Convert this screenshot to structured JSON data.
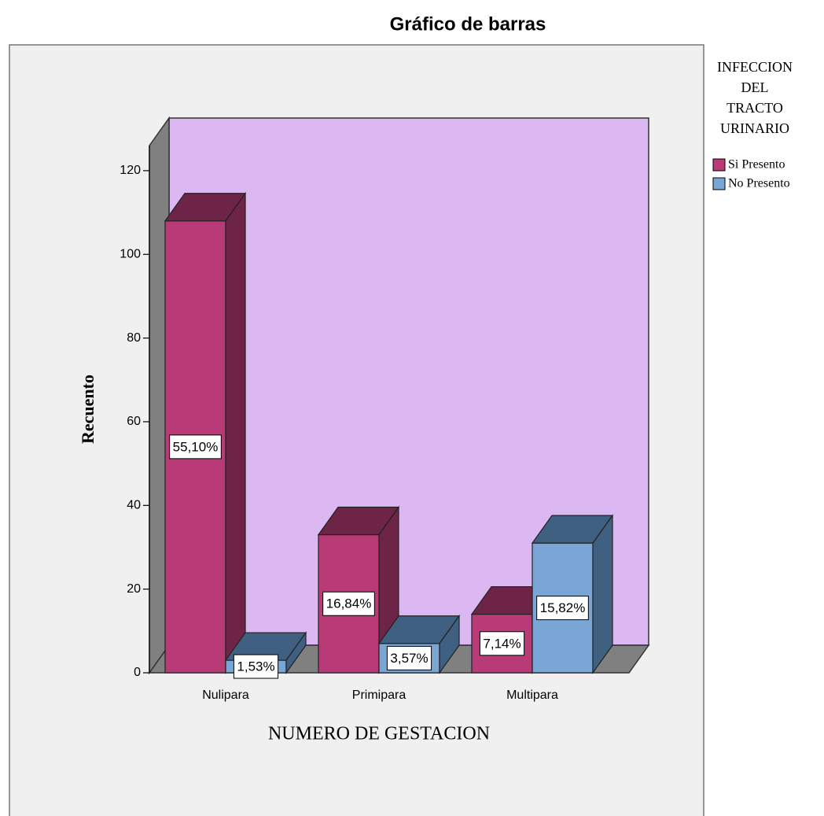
{
  "chart_data": {
    "type": "bar3d",
    "title": "Gráfico de barras",
    "xlabel": "NUMERO DE GESTACION",
    "ylabel": "Recuento",
    "legend_title": [
      "INFECCION",
      "DEL",
      "TRACTO",
      "URINARIO"
    ],
    "categories": [
      "Nulipara",
      "Primipara",
      "Multipara"
    ],
    "series": [
      {
        "name": "Si Presento",
        "color": "#b83b78",
        "shade": "#6e2446",
        "values": [
          108,
          33,
          14
        ],
        "percent_labels": [
          "55,10%",
          "16,84%",
          "7,14%"
        ]
      },
      {
        "name": "No Presento",
        "color": "#7aa6d6",
        "shade": "#3f6080",
        "values": [
          3,
          7,
          31
        ],
        "percent_labels": [
          "1,53%",
          "3,57%",
          "15,82%"
        ]
      }
    ],
    "ylim": [
      0,
      126
    ],
    "yticks": [
      0,
      20,
      40,
      60,
      80,
      100,
      120
    ],
    "legend": "right"
  }
}
